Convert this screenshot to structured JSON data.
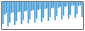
{
  "chart_data": {
    "type": "bar",
    "values": [
      72,
      60,
      58,
      75,
      70,
      58,
      57,
      73,
      68,
      57,
      56,
      72,
      67,
      56,
      55,
      71,
      66,
      55,
      54,
      70,
      65,
      54,
      53,
      69,
      64,
      53,
      52,
      68,
      63,
      52,
      51,
      67,
      62,
      51,
      50,
      66,
      61,
      50,
      49,
      65,
      60,
      49,
      48,
      64,
      59,
      49,
      48,
      63
    ],
    "color": "#4d9fd6",
    "ylim": [
      78,
      44
    ],
    "grid": false,
    "tick_labels": false
  }
}
